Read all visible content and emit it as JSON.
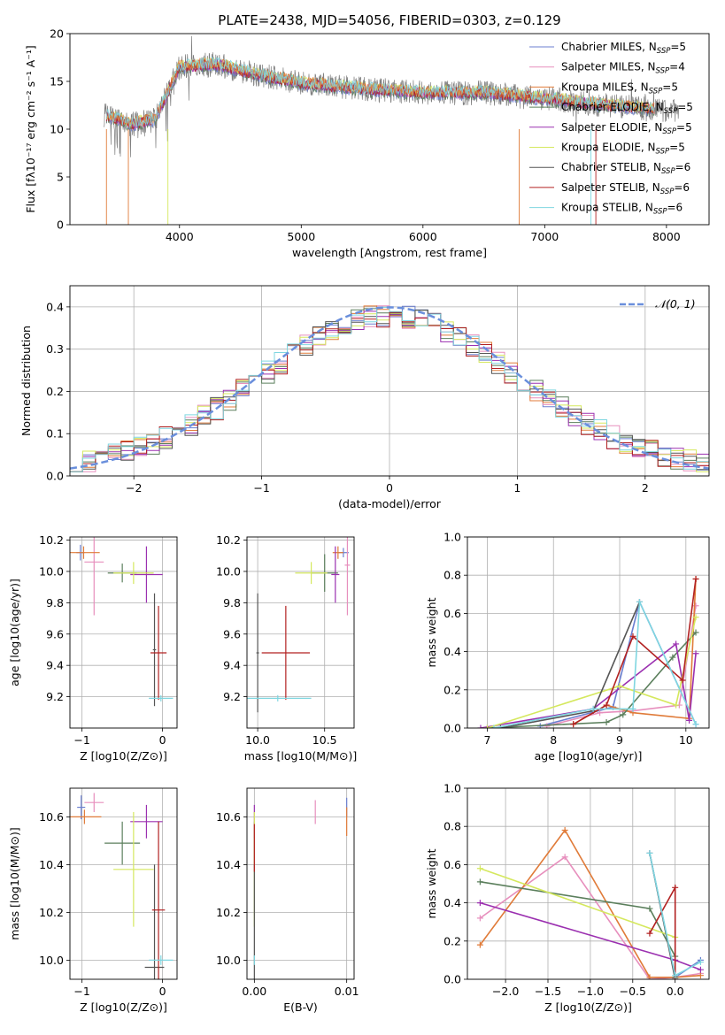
{
  "title": "PLATE=2438, MJD=54056, FIBERID=0303, z=0.129",
  "chart_data": [
    {
      "id": "spectrum",
      "type": "line",
      "xlabel": "wavelength [Angstrom, rest frame]",
      "ylabel": "Flux [fλ10⁻¹⁷ erg cm⁻² s⁻¹ A⁻¹]",
      "xlim": [
        3100,
        8350
      ],
      "ylim": [
        0,
        20
      ],
      "xticks": [
        4000,
        5000,
        6000,
        7000,
        8000
      ],
      "yticks": [
        0,
        5,
        10,
        15,
        20
      ],
      "grid": false,
      "legend": "upper-right",
      "data_envelope": [
        {
          "x": 3380,
          "y": 11.5
        },
        {
          "x": 3600,
          "y": 10.5
        },
        {
          "x": 3800,
          "y": 11.0
        },
        {
          "x": 4000,
          "y": 16.5
        },
        {
          "x": 4300,
          "y": 16.8
        },
        {
          "x": 4600,
          "y": 15.8
        },
        {
          "x": 5000,
          "y": 14.8
        },
        {
          "x": 5500,
          "y": 14.2
        },
        {
          "x": 6000,
          "y": 13.8
        },
        {
          "x": 6500,
          "y": 13.8
        },
        {
          "x": 7000,
          "y": 13.2
        },
        {
          "x": 7500,
          "y": 12.5
        },
        {
          "x": 8000,
          "y": 12.0
        },
        {
          "x": 8100,
          "y": 11.8
        }
      ],
      "series": [
        {
          "name": "Chabrier MILES, N",
          "sub": "SSP",
          "suffix": "=5",
          "color": "#6b7fd0"
        },
        {
          "name": "Salpeter MILES, N",
          "sub": "SSP",
          "suffix": "=4",
          "color": "#e78fbd"
        },
        {
          "name": "Kroupa MILES, N",
          "sub": "SSP",
          "suffix": "=5",
          "color": "#e07b39"
        },
        {
          "name": "Chabrier ELODIE, N",
          "sub": "SSP",
          "suffix": "=5",
          "color": "#5b7f5c"
        },
        {
          "name": "Salpeter ELODIE, N",
          "sub": "SSP",
          "suffix": "=5",
          "color": "#9b30b0"
        },
        {
          "name": "Kroupa ELODIE, N",
          "sub": "SSP",
          "suffix": "=5",
          "color": "#d5e85e"
        },
        {
          "name": "Chabrier STELIB, N",
          "sub": "SSP",
          "suffix": "=6",
          "color": "#555555"
        },
        {
          "name": "Salpeter STELIB, N",
          "sub": "SSP",
          "suffix": "=6",
          "color": "#b22222"
        },
        {
          "name": "Kroupa STELIB, N",
          "sub": "SSP",
          "suffix": "=6",
          "color": "#7fd6e0"
        }
      ]
    },
    {
      "id": "residuals",
      "type": "line",
      "xlabel": "(data-model)/error",
      "ylabel": "Normed distribution",
      "xlim": [
        -2.5,
        2.5
      ],
      "ylim": [
        0,
        0.45
      ],
      "xticks": [
        -2,
        -1,
        0,
        1,
        2
      ],
      "yticks": [
        0.0,
        0.1,
        0.2,
        0.3,
        0.4
      ],
      "grid": true,
      "legend": "upper-right",
      "reference": {
        "name": "𝒩(0, 1)",
        "mean": 0,
        "sigma": 1,
        "color": "#6a8fdc"
      }
    },
    {
      "id": "age_vs_Z",
      "type": "scatter",
      "xlabel": "Z [log10(Z/Z⊙)]",
      "ylabel": "age  [log10(age/yr)]",
      "xlim": [
        -1.15,
        0.18
      ],
      "ylim": [
        9.0,
        10.22
      ],
      "xticks": [
        -1,
        0
      ],
      "yticks": [
        9.2,
        9.4,
        9.6,
        9.8,
        10.0,
        10.2
      ],
      "grid": true,
      "points": [
        {
          "c": 0,
          "x": -1.02,
          "y": 10.12,
          "xe": 0.05,
          "ye": 0.05
        },
        {
          "c": 1,
          "x": -0.85,
          "y": 10.06,
          "xe": 0.12,
          "ye": 0.34
        },
        {
          "c": 2,
          "x": -0.98,
          "y": 10.12,
          "xe": 0.2,
          "ye": 0.04
        },
        {
          "c": 3,
          "x": -0.5,
          "y": 9.99,
          "xe": 0.18,
          "ye": 0.06
        },
        {
          "c": 4,
          "x": -0.2,
          "y": 9.98,
          "xe": 0.2,
          "ye": 0.18
        },
        {
          "c": 5,
          "x": -0.36,
          "y": 9.99,
          "xe": 0.25,
          "ye": 0.07
        },
        {
          "c": 6,
          "x": -0.1,
          "y": 9.5,
          "xe": 0.02,
          "ye": 0.36
        },
        {
          "c": 7,
          "x": -0.05,
          "y": 9.48,
          "xe": 0.1,
          "ye": 0.3
        },
        {
          "c": 8,
          "x": -0.02,
          "y": 9.19,
          "xe": 0.15,
          "ye": 0.02
        }
      ]
    },
    {
      "id": "age_vs_mass",
      "type": "scatter",
      "xlabel": "mass [log10(M/M⊙)]",
      "ylabel": "",
      "xlim": [
        9.92,
        10.72
      ],
      "ylim": [
        9.0,
        10.22
      ],
      "xticks": [
        10.0,
        10.5
      ],
      "yticks": [
        9.2,
        9.4,
        9.6,
        9.8,
        10.0,
        10.2
      ],
      "grid": true,
      "points": [
        {
          "c": 0,
          "x": 10.64,
          "y": 10.12,
          "xe": 0.04,
          "ye": 0.03
        },
        {
          "c": 1,
          "x": 10.67,
          "y": 10.04,
          "xe": 0.02,
          "ye": 0.32
        },
        {
          "c": 2,
          "x": 10.6,
          "y": 10.12,
          "xe": 0.04,
          "ye": 0.04
        },
        {
          "c": 3,
          "x": 10.5,
          "y": 9.99,
          "xe": 0.1,
          "ye": 0.12
        },
        {
          "c": 4,
          "x": 10.58,
          "y": 9.98,
          "xe": 0.03,
          "ye": 0.18
        },
        {
          "c": 5,
          "x": 10.4,
          "y": 9.99,
          "xe": 0.12,
          "ye": 0.07
        },
        {
          "c": 6,
          "x": 10.0,
          "y": 9.48,
          "xe": 0.01,
          "ye": 0.38
        },
        {
          "c": 7,
          "x": 10.21,
          "y": 9.48,
          "xe": 0.18,
          "ye": 0.3
        },
        {
          "c": 8,
          "x": 10.15,
          "y": 9.19,
          "xe": 0.25,
          "ye": 0.02
        }
      ]
    },
    {
      "id": "weight_vs_age",
      "type": "line",
      "xlabel": "age  [log10(age/yr)]",
      "ylabel": "mass weight",
      "xlim": [
        6.7,
        10.35
      ],
      "ylim": [
        0,
        1.0
      ],
      "xticks": [
        7,
        8,
        9,
        10
      ],
      "yticks": [
        0.0,
        0.2,
        0.4,
        0.6,
        0.8,
        1.0
      ],
      "grid": true,
      "series": [
        {
          "c": 0,
          "points": [
            [
              7.8,
              0.01
            ],
            [
              8.9,
              0.11
            ],
            [
              9.3,
              0.66
            ],
            [
              10.15,
              0.02
            ]
          ]
        },
        {
          "c": 1,
          "points": [
            [
              7.9,
              0.01
            ],
            [
              8.7,
              0.08
            ],
            [
              9.2,
              0.09
            ],
            [
              9.9,
              0.12
            ],
            [
              10.15,
              0.64
            ]
          ]
        },
        {
          "c": 2,
          "points": [
            [
              8.3,
              0.02
            ],
            [
              8.8,
              0.12
            ],
            [
              9.2,
              0.08
            ],
            [
              10.05,
              0.05
            ],
            [
              10.15,
              0.78
            ]
          ]
        },
        {
          "c": 3,
          "points": [
            [
              7.0,
              0.0
            ],
            [
              8.8,
              0.03
            ],
            [
              9.05,
              0.07
            ],
            [
              9.8,
              0.37
            ],
            [
              10.15,
              0.5
            ]
          ]
        },
        {
          "c": 4,
          "points": [
            [
              6.9,
              0.0
            ],
            [
              8.6,
              0.1
            ],
            [
              9.85,
              0.44
            ],
            [
              10.05,
              0.04
            ],
            [
              10.15,
              0.39
            ]
          ]
        },
        {
          "c": 5,
          "points": [
            [
              7.0,
              0.0
            ],
            [
              9.0,
              0.22
            ],
            [
              9.85,
              0.12
            ],
            [
              10.15,
              0.58
            ]
          ]
        },
        {
          "c": 6,
          "points": [
            [
              7.2,
              0.0
            ],
            [
              8.6,
              0.09
            ],
            [
              9.3,
              0.66
            ]
          ]
        },
        {
          "c": 7,
          "points": [
            [
              8.3,
              0.02
            ],
            [
              8.8,
              0.12
            ],
            [
              9.2,
              0.48
            ],
            [
              9.95,
              0.25
            ],
            [
              10.15,
              0.78
            ]
          ]
        },
        {
          "c": 8,
          "points": [
            [
              7.1,
              0.0
            ],
            [
              8.6,
              0.1
            ],
            [
              9.2,
              0.1
            ],
            [
              9.3,
              0.66
            ],
            [
              10.15,
              0.02
            ]
          ]
        }
      ]
    },
    {
      "id": "mass_vs_Z",
      "type": "scatter",
      "xlabel": "Z [log10(Z/Z⊙)]",
      "ylabel": "mass [log10(M/M⊙)]",
      "xlim": [
        -1.15,
        0.18
      ],
      "ylim": [
        9.92,
        10.72
      ],
      "xticks": [
        -1,
        0
      ],
      "yticks": [
        10.0,
        10.2,
        10.4,
        10.6
      ],
      "grid": true,
      "points": [
        {
          "c": 0,
          "x": -1.01,
          "y": 10.64,
          "xe": 0.05,
          "ye": 0.05
        },
        {
          "c": 1,
          "x": -0.85,
          "y": 10.66,
          "xe": 0.12,
          "ye": 0.04
        },
        {
          "c": 2,
          "x": -0.97,
          "y": 10.6,
          "xe": 0.21,
          "ye": 0.03
        },
        {
          "c": 3,
          "x": -0.5,
          "y": 10.49,
          "xe": 0.22,
          "ye": 0.09
        },
        {
          "c": 4,
          "x": -0.2,
          "y": 10.58,
          "xe": 0.2,
          "ye": 0.07
        },
        {
          "c": 5,
          "x": -0.36,
          "y": 10.38,
          "xe": 0.25,
          "ye": 0.24
        },
        {
          "c": 6,
          "x": -0.1,
          "y": 9.97,
          "xe": 0.12,
          "ye": 0.43
        },
        {
          "c": 7,
          "x": -0.05,
          "y": 10.21,
          "xe": 0.08,
          "ye": 0.37
        },
        {
          "c": 8,
          "x": -0.02,
          "y": 10.0,
          "xe": 0.15,
          "ye": 0.02
        }
      ]
    },
    {
      "id": "mass_vs_ebv",
      "type": "scatter",
      "xlabel": "E(B-V)",
      "ylabel": "",
      "xlim": [
        -0.0008,
        0.0108
      ],
      "ylim": [
        9.92,
        10.72
      ],
      "xticks": [
        0.0,
        0.01
      ],
      "xticklabels": [
        "0.00",
        "0.01"
      ],
      "yticks": [
        10.0,
        10.2,
        10.4,
        10.6
      ],
      "grid": true,
      "points": [
        {
          "c": 0,
          "x": 0.01,
          "y": 10.64,
          "xe": 0,
          "ye": 0.04
        },
        {
          "c": 1,
          "x": 0.0066,
          "y": 10.62,
          "xe": 0,
          "ye": 0.05
        },
        {
          "c": 2,
          "x": 0.01,
          "y": 10.58,
          "xe": 0,
          "ye": 0.06
        },
        {
          "c": 3,
          "x": 0.0,
          "y": 10.49,
          "xe": 0,
          "ye": 0.09
        },
        {
          "c": 4,
          "x": 0.0,
          "y": 10.58,
          "xe": 0,
          "ye": 0.07
        },
        {
          "c": 5,
          "x": 0.0,
          "y": 10.38,
          "xe": 0,
          "ye": 0.24
        },
        {
          "c": 6,
          "x": 0.0,
          "y": 9.97,
          "xe": 0,
          "ye": 0.43
        },
        {
          "c": 7,
          "x": 0.0,
          "y": 10.47,
          "xe": 0,
          "ye": 0.1
        },
        {
          "c": 8,
          "x": 0.0,
          "y": 10.0,
          "xe": 0,
          "ye": 0.02
        }
      ]
    },
    {
      "id": "weight_vs_Z",
      "type": "line",
      "xlabel": "Z [log10(Z/Z⊙)]",
      "ylabel": "mass weight",
      "xlim": [
        -2.45,
        0.4
      ],
      "ylim": [
        0,
        1.0
      ],
      "xticks": [
        -2.0,
        -1.5,
        -1.0,
        -0.5,
        0.0
      ],
      "xticklabels": [
        "−2.0",
        "−1.5",
        "−1.0",
        "−0.5",
        "0.0"
      ],
      "yticks": [
        0.0,
        0.2,
        0.4,
        0.6,
        0.8,
        1.0
      ],
      "grid": true,
      "series": [
        {
          "c": 0,
          "points": [
            [
              -0.3,
              0.66
            ],
            [
              0.0,
              0.01
            ],
            [
              0.3,
              0.1
            ]
          ]
        },
        {
          "c": 1,
          "points": [
            [
              -2.3,
              0.32
            ],
            [
              -1.3,
              0.64
            ],
            [
              -0.3,
              0.0
            ],
            [
              0.0,
              0.01
            ],
            [
              0.3,
              0.03
            ]
          ]
        },
        {
          "c": 2,
          "points": [
            [
              -2.3,
              0.18
            ],
            [
              -1.3,
              0.78
            ],
            [
              -0.3,
              0.01
            ],
            [
              0.0,
              0.01
            ],
            [
              0.3,
              0.02
            ]
          ]
        },
        {
          "c": 3,
          "points": [
            [
              -2.3,
              0.51
            ],
            [
              -0.3,
              0.37
            ],
            [
              0.0,
              0.12
            ],
            [
              0.0,
              0.01
            ]
          ]
        },
        {
          "c": 4,
          "points": [
            [
              -2.3,
              0.4
            ],
            [
              0.0,
              0.1
            ],
            [
              0.3,
              0.05
            ]
          ]
        },
        {
          "c": 5,
          "points": [
            [
              -2.3,
              0.58
            ],
            [
              0.0,
              0.22
            ]
          ]
        },
        {
          "c": 6,
          "points": [
            [
              -0.3,
              0.66
            ],
            [
              0.0,
              0.0
            ]
          ]
        },
        {
          "c": 7,
          "points": [
            [
              -0.3,
              0.24
            ],
            [
              0.0,
              0.48
            ],
            [
              0.0,
              0.0
            ]
          ]
        },
        {
          "c": 8,
          "points": [
            [
              -0.3,
              0.66
            ],
            [
              0.0,
              0.02
            ],
            [
              0.3,
              0.09
            ]
          ]
        }
      ]
    }
  ]
}
